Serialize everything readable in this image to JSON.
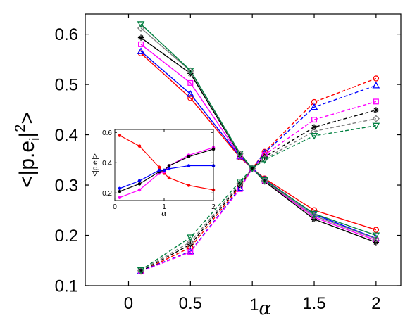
{
  "chart_data": [
    {
      "type": "line",
      "title": "",
      "xlabel": "α",
      "xlabel_prefix": "1",
      "ylabel": "<|p.e_i|^2>",
      "ylabel_parts": {
        "open": "<|p.e",
        "sub": "i",
        "close": "|",
        "sup": "2",
        "end": ">"
      },
      "xlim": [
        -0.35,
        2.2
      ],
      "ylim": [
        0.1,
        0.64
      ],
      "xticks": [
        0,
        0.5,
        1,
        1.5,
        2
      ],
      "xtick_labels": [
        "0",
        "0.5",
        "",
        "1.5",
        "2"
      ],
      "yticks": [
        0.1,
        0.2,
        0.3,
        0.4,
        0.5,
        0.6
      ],
      "ytick_labels": [
        "0.1",
        "0.2",
        "0.3",
        "0.4",
        "0.5",
        "0.6"
      ],
      "grid": false,
      "x": [
        0.1,
        0.5,
        0.9,
        1.0,
        1.1,
        1.5,
        2.0
      ],
      "series": [
        {
          "color": "#ff0000",
          "marker": "circle",
          "style": "solid",
          "values": [
            0.562,
            0.473,
            0.355,
            0.333,
            0.313,
            0.25,
            0.211
          ]
        },
        {
          "color": "#0000ff",
          "marker": "triangle-up",
          "style": "solid",
          "values": [
            0.566,
            0.481,
            0.357,
            0.333,
            0.311,
            0.242,
            0.194
          ]
        },
        {
          "color": "#ff00ff",
          "marker": "square",
          "style": "solid",
          "values": [
            0.58,
            0.503,
            0.358,
            0.333,
            0.308,
            0.236,
            0.19
          ]
        },
        {
          "color": "#000000",
          "marker": "star",
          "style": "solid",
          "values": [
            0.593,
            0.522,
            0.36,
            0.333,
            0.307,
            0.232,
            0.186
          ]
        },
        {
          "color": "#808080",
          "marker": "diamond",
          "style": "solid",
          "values": [
            0.612,
            0.527,
            0.362,
            0.333,
            0.309,
            0.239,
            0.193
          ]
        },
        {
          "color": "#008040",
          "marker": "triangle-down",
          "style": "solid",
          "values": [
            0.62,
            0.528,
            0.363,
            0.333,
            0.31,
            0.243,
            0.2
          ]
        },
        {
          "color": "#ff0000",
          "marker": "circle",
          "style": "dashed",
          "values": [
            0.128,
            0.176,
            0.297,
            0.333,
            0.366,
            0.465,
            0.512
          ]
        },
        {
          "color": "#0000ff",
          "marker": "triangle-up",
          "style": "dashed",
          "values": [
            0.129,
            0.168,
            0.294,
            0.333,
            0.364,
            0.455,
            0.498
          ]
        },
        {
          "color": "#ff00ff",
          "marker": "square",
          "style": "dashed",
          "values": [
            0.128,
            0.167,
            0.292,
            0.333,
            0.36,
            0.43,
            0.466
          ]
        },
        {
          "color": "#000000",
          "marker": "star",
          "style": "dashed",
          "values": [
            0.129,
            0.182,
            0.3,
            0.333,
            0.356,
            0.415,
            0.449
          ]
        },
        {
          "color": "#808080",
          "marker": "diamond",
          "style": "dashed",
          "values": [
            0.13,
            0.187,
            0.303,
            0.333,
            0.352,
            0.407,
            0.432
          ]
        },
        {
          "color": "#008040",
          "marker": "triangle-down",
          "style": "dashed",
          "values": [
            0.131,
            0.196,
            0.307,
            0.333,
            0.35,
            0.398,
            0.418
          ]
        }
      ]
    },
    {
      "type": "line",
      "title": "",
      "xlabel": "α",
      "ylabel": "<|p.e_i|>",
      "ylabel_parts": {
        "open": "<|p.e",
        "sub": "i",
        "close": "|>"
      },
      "xlim": [
        0,
        2
      ],
      "ylim": [
        0.15,
        0.62
      ],
      "xticks": [
        0,
        1,
        2
      ],
      "xtick_labels": [
        "0",
        "1",
        "2"
      ],
      "yticks": [
        0.2,
        0.4,
        0.6
      ],
      "ytick_labels": [
        "0.2",
        "0.4",
        "0.6"
      ],
      "grid": false,
      "x": [
        0.1,
        0.5,
        0.9,
        1.0,
        1.1,
        1.5,
        2.0
      ],
      "series": [
        {
          "color": "#ff0000",
          "marker": "dot",
          "style": "solid",
          "values": [
            0.58,
            0.51,
            0.37,
            0.33,
            0.3,
            0.25,
            0.22
          ]
        },
        {
          "color": "#ff00ff",
          "marker": "dot",
          "style": "solid",
          "values": [
            0.17,
            0.22,
            0.33,
            0.34,
            0.38,
            0.45,
            0.5
          ]
        },
        {
          "color": "#000000",
          "marker": "dot",
          "style": "solid",
          "values": [
            0.21,
            0.26,
            0.34,
            0.35,
            0.38,
            0.44,
            0.49
          ]
        },
        {
          "color": "#0000ff",
          "marker": "dot",
          "style": "solid",
          "values": [
            0.23,
            0.28,
            0.35,
            0.35,
            0.36,
            0.38,
            0.38
          ]
        }
      ]
    }
  ]
}
